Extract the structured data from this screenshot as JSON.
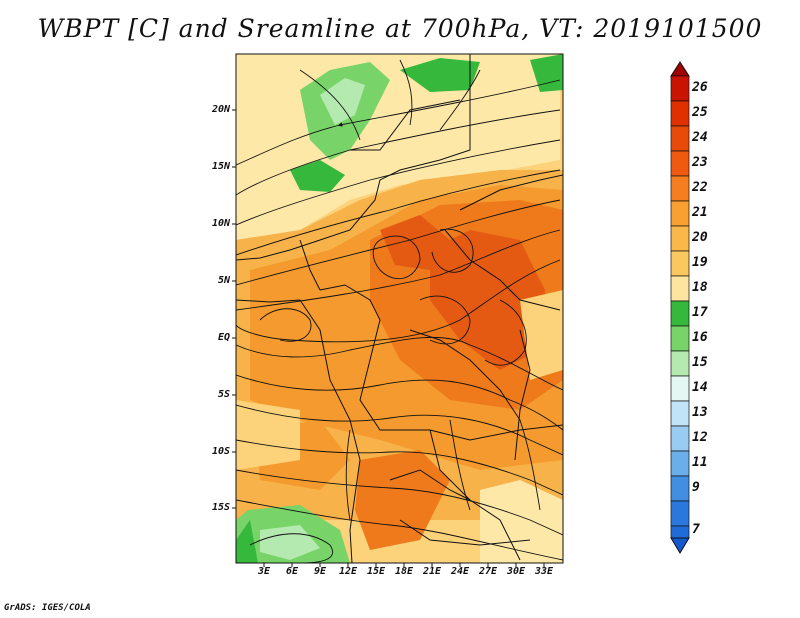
{
  "title": "WBPT [C] and Sreamline at 700hPa, VT: 2019101500",
  "credit": "GrADS: IGES/COLA",
  "lat_labels": [
    "20N",
    "15N",
    "10N",
    "5N",
    "EQ",
    "5S",
    "10S",
    "15S"
  ],
  "lon_labels": [
    "3E",
    "6E",
    "9E",
    "12E",
    "15E",
    "18E",
    "21E",
    "24E",
    "27E",
    "30E",
    "33E"
  ],
  "colorbar": {
    "labels": [
      "26",
      "25",
      "24",
      "23",
      "22",
      "21",
      "20",
      "19",
      "18",
      "17",
      "16",
      "15",
      "14",
      "13",
      "12",
      "11",
      "9",
      "7"
    ],
    "colors": [
      "#a00000",
      "#c81400",
      "#e03000",
      "#f05a10",
      "#f57f20",
      "#f8a030",
      "#fbc860",
      "#fde5a0",
      "#fff5c8",
      "#36b83c",
      "#78d468",
      "#b4eab0",
      "#e4f7f3",
      "#c2e4f8",
      "#98ccf2",
      "#6aaeea",
      "#428ee0",
      "#1f6cd8",
      "#1457cf"
    ]
  },
  "field_colors": {
    "c18": "#fde8a8",
    "c19": "#fcd27a",
    "c20": "#f8b24a",
    "c21": "#f49a2e",
    "c22": "#ee7a1c",
    "c23": "#e45a12",
    "green17": "#36b83c",
    "green16": "#78d468",
    "pale15": "#b4eab0"
  }
}
